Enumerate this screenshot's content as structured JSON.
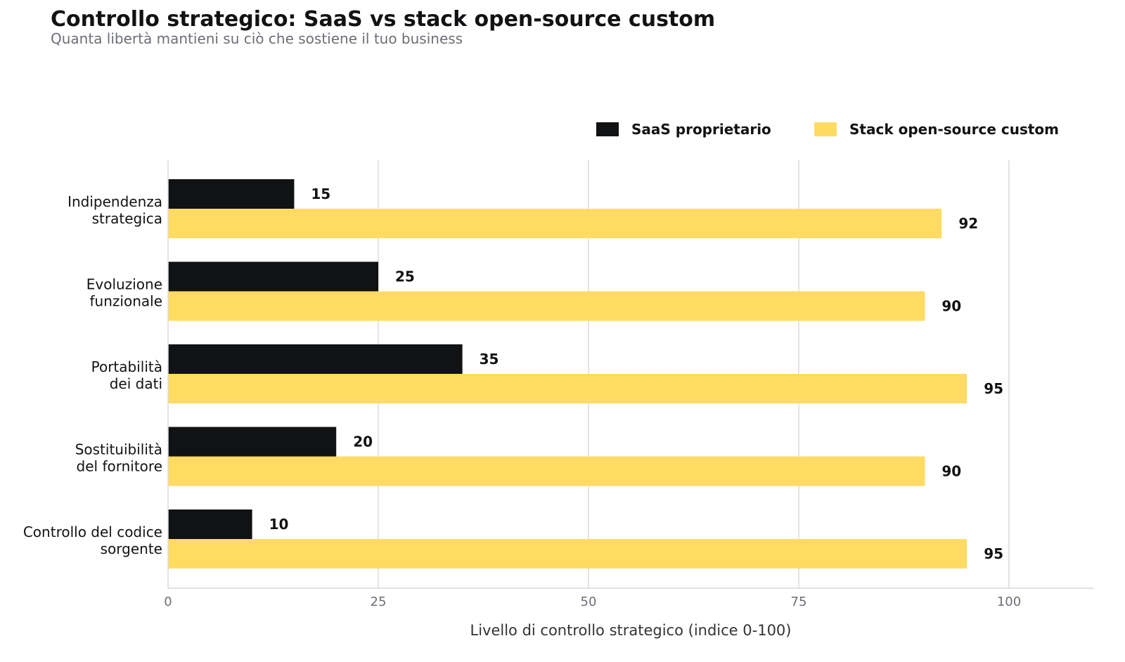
{
  "title": "Controllo strategico: SaaS vs stack open-source custom",
  "subtitle": "Quanta libertà mantieni su ciò che sostiene il tuo business",
  "chart_data": {
    "type": "bar",
    "orientation": "horizontal",
    "categories": [
      [
        "Indipendenza",
        "strategica"
      ],
      [
        "Evoluzione",
        "funzionale"
      ],
      [
        "Portabilità",
        "dei dati"
      ],
      [
        "Sostituibilità",
        "del fornitore"
      ],
      [
        "Controllo del codice",
        "sorgente"
      ]
    ],
    "series": [
      {
        "name": "SaaS proprietario",
        "color": "#111214",
        "values": [
          15,
          25,
          35,
          20,
          10
        ]
      },
      {
        "name": "Stack open-source custom",
        "color": "#FFDB63",
        "values": [
          92,
          90,
          95,
          90,
          95
        ]
      }
    ],
    "xlabel": "Livello di controllo strategico (indice 0-100)",
    "xlim": [
      0,
      110
    ],
    "xticks": [
      0,
      25,
      50,
      75,
      100
    ],
    "grid": "vertical",
    "legend": "top-right",
    "data_labels": true
  }
}
